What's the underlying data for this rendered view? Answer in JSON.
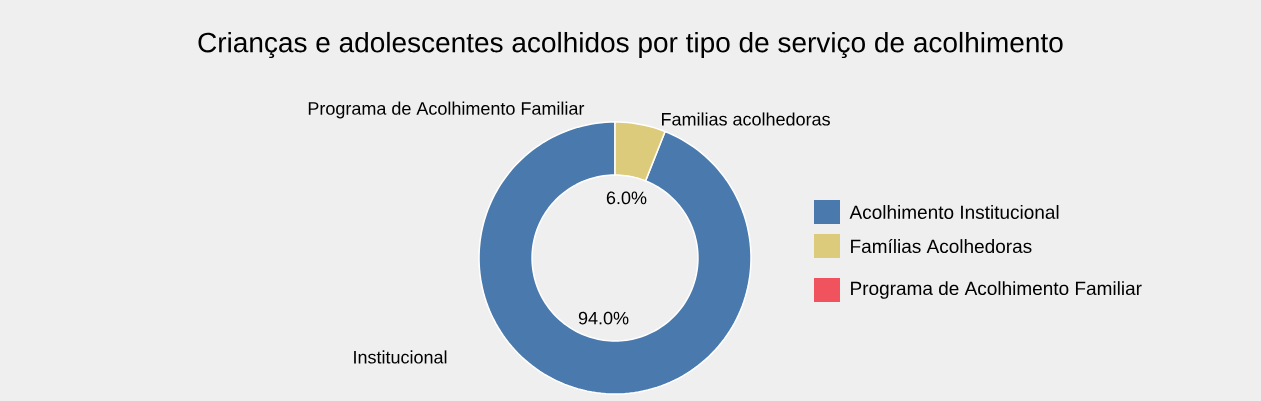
{
  "chart_data": {
    "type": "donut",
    "title": "Crianças e adolescentes acolhidos por tipo de serviço de acolhimento",
    "categories": [
      "Acolhimento Institucional",
      "Famílias  Acolhedoras",
      "Programa de Acolhimento Familiar"
    ],
    "values": [
      94.0,
      6.0,
      0
    ],
    "colors": [
      "#4a7aad",
      "#dccb7a",
      "#f0525e"
    ],
    "value_labels": [
      "94.0%",
      "6.0%",
      null
    ],
    "annotations": [
      "Institucional",
      "Familias acolhedoras",
      "Programa de Acolhimento Familiar"
    ],
    "legend": "right"
  }
}
